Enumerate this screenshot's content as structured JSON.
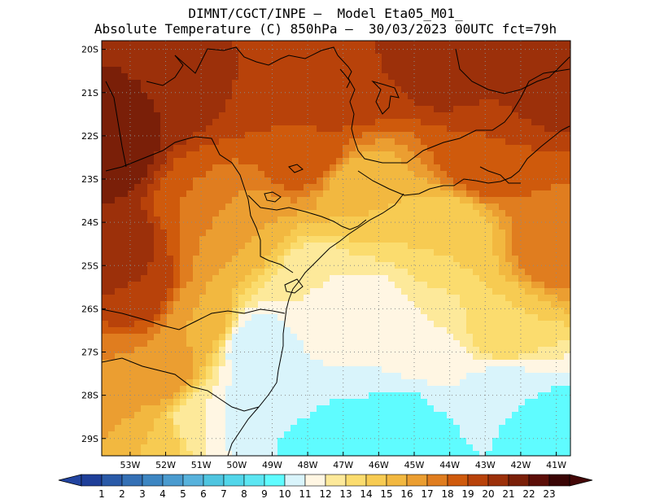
{
  "header": {
    "line1": "DIMNT/CGCT/INPE –  Model Eta05_M01_",
    "line2": "Absolute Temperature (C) 850hPa –  30/03/2023 00UTC fct=79h"
  },
  "map": {
    "lon_range": [
      -53.8,
      -40.6
    ],
    "lat_range": [
      -29.4,
      -19.8
    ],
    "lat_ticks": [
      "20S",
      "21S",
      "22S",
      "23S",
      "24S",
      "25S",
      "26S",
      "27S",
      "28S",
      "29S"
    ],
    "lon_ticks": [
      "53W",
      "52W",
      "51W",
      "50W",
      "49W",
      "48W",
      "47W",
      "46W",
      "45W",
      "44W",
      "43W",
      "42W",
      "41W"
    ],
    "gridlines": "dotted"
  },
  "colorbar": {
    "labels": [
      "1",
      "2",
      "3",
      "4",
      "5",
      "6",
      "7",
      "8",
      "9",
      "10",
      "11",
      "12",
      "13",
      "14",
      "15",
      "16",
      "17",
      "18",
      "19",
      "20",
      "21",
      "22",
      "23"
    ],
    "colors": [
      "#1f3f99",
      "#2a5aa8",
      "#3470b5",
      "#3d86c2",
      "#4a9bcf",
      "#57b2dc",
      "#4fc5e0",
      "#52d6ea",
      "#5ce6f2",
      "#5ffcff",
      "#d9f4fb",
      "#fff6e3",
      "#fde99a",
      "#fbdc6e",
      "#f7cb52",
      "#f2b840",
      "#eb9e31",
      "#e07d1f",
      "#cf5a0c",
      "#b8420a",
      "#9c300a",
      "#7a1f08",
      "#5c0e08",
      "#3a0505"
    ],
    "low_arrow_color": "#2244a0",
    "high_arrow_color": "#440808"
  },
  "temperature_field": [
    {
      "lon": -53.5,
      "lat": -22.3,
      "temp": 22
    },
    {
      "lon": -52.0,
      "lat": -21.0,
      "temp": 21
    },
    {
      "lon": -53.5,
      "lat": -24.5,
      "temp": 21
    },
    {
      "lon": -52.8,
      "lat": -25.5,
      "temp": 20
    },
    {
      "lon": -50.0,
      "lat": -20.5,
      "temp": 20
    },
    {
      "lon": -47.0,
      "lat": -20.8,
      "temp": 20
    },
    {
      "lon": -44.0,
      "lat": -20.2,
      "temp": 21
    },
    {
      "lon": -41.3,
      "lat": -20.5,
      "temp": 21
    },
    {
      "lon": -41.0,
      "lat": -24.5,
      "temp": 18
    },
    {
      "lon": -43.0,
      "lat": -22.5,
      "temp": 19
    },
    {
      "lon": -48.0,
      "lat": -22.3,
      "temp": 19
    },
    {
      "lon": -51.0,
      "lat": -23.5,
      "temp": 18
    },
    {
      "lon": -50.0,
      "lat": -24.2,
      "temp": 16
    },
    {
      "lon": -46.5,
      "lat": -23.3,
      "temp": 15
    },
    {
      "lon": -44.0,
      "lat": -24.3,
      "temp": 14
    },
    {
      "lon": -47.8,
      "lat": -25.5,
      "temp": 12
    },
    {
      "lon": -46.5,
      "lat": -26.3,
      "temp": 11
    },
    {
      "lon": -44.5,
      "lat": -26.8,
      "temp": 12
    },
    {
      "lon": -42.5,
      "lat": -26.5,
      "temp": 14
    },
    {
      "lon": -49.5,
      "lat": -26.9,
      "temp": 10
    },
    {
      "lon": -51.0,
      "lat": -26.3,
      "temp": 16
    },
    {
      "lon": -52.0,
      "lat": -27.5,
      "temp": 17
    },
    {
      "lon": -53.5,
      "lat": -28.0,
      "temp": 17
    },
    {
      "lon": -52.5,
      "lat": -29.0,
      "temp": 15
    },
    {
      "lon": -51.0,
      "lat": -28.5,
      "temp": 12
    },
    {
      "lon": -49.8,
      "lat": -28.5,
      "temp": 10
    },
    {
      "lon": -47.5,
      "lat": -29.1,
      "temp": 9
    },
    {
      "lon": -45.0,
      "lat": -28.7,
      "temp": 9
    },
    {
      "lon": -42.5,
      "lat": -28.0,
      "temp": 10
    },
    {
      "lon": -41.0,
      "lat": -29.0,
      "temp": 9
    },
    {
      "lon": -48.5,
      "lat": -27.8,
      "temp": 11
    },
    {
      "lon": -44.0,
      "lat": -27.7,
      "temp": 11
    }
  ]
}
